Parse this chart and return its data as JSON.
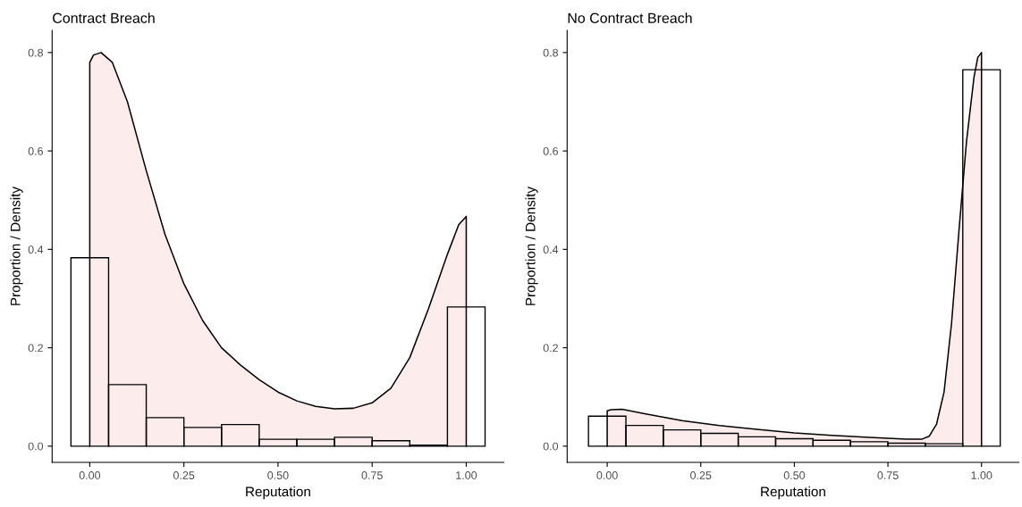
{
  "chart_data": [
    {
      "type": "histogram",
      "title": "Contract Breach",
      "xlabel": "Reputation",
      "ylabel": "Proportion / Density",
      "bins": [
        -0.05,
        0.05,
        0.15,
        0.25,
        0.35,
        0.45,
        0.55,
        0.65,
        0.75,
        0.85,
        0.95,
        1.05
      ],
      "values": [
        0.383,
        0.125,
        0.058,
        0.038,
        0.044,
        0.014,
        0.014,
        0.018,
        0.011,
        0.002,
        0.283
      ],
      "series": [
        {
          "type": "area",
          "color": "#fdecec",
          "x": [
            0,
            0.01,
            0.03,
            0.06,
            0.1,
            0.15,
            0.2,
            0.25,
            0.3,
            0.35,
            0.4,
            0.45,
            0.5,
            0.55,
            0.6,
            0.65,
            0.7,
            0.75,
            0.8,
            0.85,
            0.9,
            0.95,
            0.98,
            1.0
          ],
          "values": [
            0.78,
            0.795,
            0.8,
            0.78,
            0.7,
            0.56,
            0.43,
            0.33,
            0.255,
            0.2,
            0.165,
            0.135,
            0.11,
            0.092,
            0.081,
            0.076,
            0.077,
            0.088,
            0.118,
            0.18,
            0.28,
            0.39,
            0.45,
            0.467
          ]
        }
      ],
      "xlim": [
        -0.1,
        1.1
      ],
      "ylim": [
        -0.033,
        0.845
      ],
      "xticks": [
        {
          "value": 0,
          "label": "0.00"
        },
        {
          "value": 0.25,
          "label": "0.25"
        },
        {
          "value": 0.5,
          "label": "0.50"
        },
        {
          "value": 0.75,
          "label": "0.75"
        },
        {
          "value": 1,
          "label": "1.00"
        }
      ],
      "yticks": [
        {
          "value": 0,
          "label": "0.0"
        },
        0.2,
        0.4,
        0.6,
        0.8
      ],
      "grid": false
    },
    {
      "type": "histogram",
      "title": "No Contract Breach",
      "xlabel": "Reputation",
      "ylabel": "Proportion / Density",
      "bins": [
        -0.05,
        0.05,
        0.15,
        0.25,
        0.35,
        0.45,
        0.55,
        0.65,
        0.75,
        0.85,
        0.95,
        1.05
      ],
      "values": [
        0.061,
        0.042,
        0.033,
        0.026,
        0.019,
        0.015,
        0.012,
        0.009,
        0.006,
        0.005,
        0.765
      ],
      "series": [
        {
          "type": "area",
          "color": "#fdecec",
          "x": [
            0,
            0.01,
            0.04,
            0.1,
            0.2,
            0.3,
            0.4,
            0.5,
            0.6,
            0.7,
            0.8,
            0.84,
            0.86,
            0.88,
            0.9,
            0.92,
            0.94,
            0.96,
            0.98,
            0.99,
            1.0
          ],
          "values": [
            0.072,
            0.074,
            0.075,
            0.066,
            0.052,
            0.042,
            0.034,
            0.027,
            0.022,
            0.018,
            0.014,
            0.014,
            0.02,
            0.045,
            0.11,
            0.25,
            0.44,
            0.62,
            0.75,
            0.79,
            0.8
          ]
        }
      ],
      "xlim": [
        -0.107,
        1.1
      ],
      "ylim": [
        -0.033,
        0.845
      ],
      "xticks": [
        {
          "value": 0,
          "label": "0.00"
        },
        {
          "value": 0.25,
          "label": "0.25"
        },
        {
          "value": 0.5,
          "label": "0.50"
        },
        {
          "value": 0.75,
          "label": "0.75"
        },
        {
          "value": 1,
          "label": "1.00"
        }
      ],
      "yticks": [
        {
          "value": 0,
          "label": "0.0"
        },
        0.2,
        0.4,
        0.6,
        0.8
      ],
      "grid": false
    }
  ]
}
